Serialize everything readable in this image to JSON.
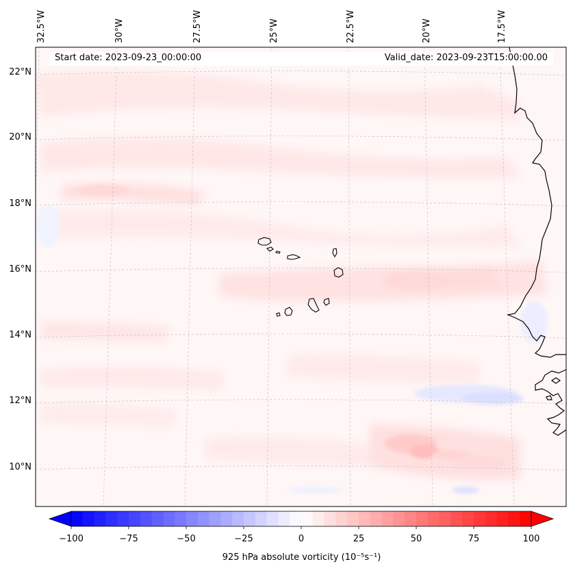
{
  "map": {
    "start_date": "Start date: 2023-09-23_00:00:00",
    "valid_date": "Valid_date: 2023-09-23T15:00:00.00",
    "lon_labels": [
      "32.5°W",
      "30°W",
      "27.5°W",
      "25°W",
      "22.5°W",
      "20°W",
      "17.5°W"
    ],
    "lat_labels": [
      "22°N",
      "20°N",
      "18°N",
      "16°N",
      "14°N",
      "12°N",
      "10°N"
    ],
    "lon_values": [
      -32.5,
      -30,
      -27.5,
      -25,
      -22.5,
      -20,
      -17.5
    ],
    "lat_values": [
      22,
      20,
      18,
      16,
      14,
      12,
      10
    ],
    "field": "925 hPa absolute vorticity",
    "regions": [
      "Cape Verde islands",
      "West African coast"
    ]
  },
  "colorbar": {
    "label": "925 hPa absolute vorticity (10⁻⁵s⁻¹)",
    "ticks": [
      "−100",
      "−75",
      "−50",
      "−25",
      "0",
      "25",
      "50",
      "75",
      "100"
    ],
    "tick_values": [
      -100,
      -75,
      -50,
      -25,
      0,
      25,
      50,
      75,
      100
    ],
    "range": [
      -100,
      100
    ],
    "cmap": "bwr",
    "colors": {
      "low": "#0000ff",
      "mid": "#ffffff",
      "high": "#ff0000"
    },
    "extend": "both"
  }
}
